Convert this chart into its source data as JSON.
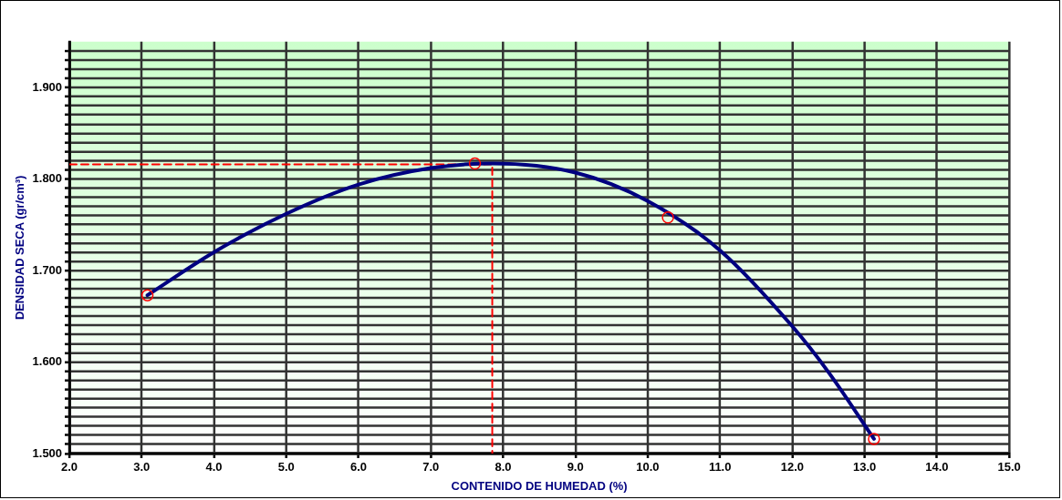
{
  "chart_data": {
    "type": "line",
    "xlabel": "CONTENIDO DE HUMEDAD (%)",
    "ylabel": "DENSIDAD SECA (gr/cm³)",
    "series": [
      {
        "color": "#000080",
        "marker": "none",
        "line_style": "solid",
        "x": [
          3.08,
          4.0,
          5.0,
          6.0,
          7.0,
          7.85,
          9.0,
          10.0,
          11.0,
          12.0,
          12.5,
          13.13
        ],
        "values": [
          1.673,
          1.72,
          1.762,
          1.794,
          1.812,
          1.817,
          1.807,
          1.776,
          1.722,
          1.639,
          1.589,
          1.516
        ]
      },
      {
        "type": "scatter",
        "color": "#ff0000",
        "marker": "circle",
        "x": [
          3.08,
          7.61,
          10.28,
          13.13
        ],
        "values": [
          1.673,
          1.817,
          1.758,
          1.516
        ]
      },
      {
        "type": "line",
        "color": "#ff0000",
        "marker": "none",
        "line_style": "dashed",
        "x": [
          2.0,
          7.85,
          7.85
        ],
        "values": [
          1.816,
          1.816,
          1.5
        ]
      }
    ],
    "xlim": [
      2.0,
      15.0
    ],
    "xticks": [
      {
        "value": 2,
        "label": "2.0"
      },
      {
        "value": 3,
        "label": "3.0"
      },
      {
        "value": 4,
        "label": "4.0"
      },
      {
        "value": 5,
        "label": "5.0"
      },
      {
        "value": 6,
        "label": "6.0"
      },
      {
        "value": 7,
        "label": "7.0"
      },
      {
        "value": 8,
        "label": "8.0"
      },
      {
        "value": 9,
        "label": "9.0"
      },
      {
        "value": 10,
        "label": "10.0"
      },
      {
        "value": 11,
        "label": "11.0"
      },
      {
        "value": 12,
        "label": "12.0"
      },
      {
        "value": 13,
        "label": "13.0"
      },
      {
        "value": 14,
        "label": "14.0"
      },
      {
        "value": 15,
        "label": "15.0"
      }
    ],
    "ylim": [
      1.5,
      1.95
    ],
    "yticks": [
      {
        "value": 1.5,
        "label": "1.500"
      },
      {
        "value": 1.51,
        "label": null
      },
      {
        "value": 1.52,
        "label": null
      },
      {
        "value": 1.53,
        "label": null
      },
      {
        "value": 1.54,
        "label": null
      },
      {
        "value": 1.55,
        "label": null
      },
      {
        "value": 1.56,
        "label": null
      },
      {
        "value": 1.57,
        "label": null
      },
      {
        "value": 1.58,
        "label": null
      },
      {
        "value": 1.59,
        "label": null
      },
      {
        "value": 1.6,
        "label": "1.600"
      },
      {
        "value": 1.61,
        "label": null
      },
      {
        "value": 1.62,
        "label": null
      },
      {
        "value": 1.63,
        "label": null
      },
      {
        "value": 1.64,
        "label": null
      },
      {
        "value": 1.65,
        "label": null
      },
      {
        "value": 1.66,
        "label": null
      },
      {
        "value": 1.67,
        "label": null
      },
      {
        "value": 1.68,
        "label": null
      },
      {
        "value": 1.69,
        "label": null
      },
      {
        "value": 1.7,
        "label": "1.700"
      },
      {
        "value": 1.71,
        "label": null
      },
      {
        "value": 1.72,
        "label": null
      },
      {
        "value": 1.73,
        "label": null
      },
      {
        "value": 1.74,
        "label": null
      },
      {
        "value": 1.75,
        "label": null
      },
      {
        "value": 1.76,
        "label": null
      },
      {
        "value": 1.77,
        "label": null
      },
      {
        "value": 1.78,
        "label": null
      },
      {
        "value": 1.79,
        "label": null
      },
      {
        "value": 1.8,
        "label": "1.800"
      },
      {
        "value": 1.81,
        "label": null
      },
      {
        "value": 1.82,
        "label": null
      },
      {
        "value": 1.83,
        "label": null
      },
      {
        "value": 1.84,
        "label": null
      },
      {
        "value": 1.85,
        "label": null
      },
      {
        "value": 1.86,
        "label": null
      },
      {
        "value": 1.87,
        "label": null
      },
      {
        "value": 1.88,
        "label": null
      },
      {
        "value": 1.89,
        "label": null
      },
      {
        "value": 1.9,
        "label": "1.900"
      },
      {
        "value": 1.91,
        "label": null
      },
      {
        "value": 1.92,
        "label": null
      },
      {
        "value": 1.93,
        "label": null
      },
      {
        "value": 1.94,
        "label": null
      }
    ],
    "grid": true,
    "legend": false
  }
}
